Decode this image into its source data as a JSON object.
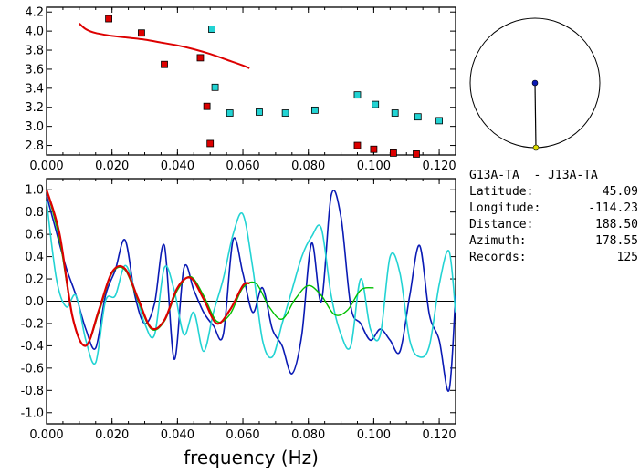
{
  "chart_data": [
    {
      "type": "scatter",
      "name": "dispersion",
      "xlim": [
        0.0,
        0.125
      ],
      "ylim": [
        2.7,
        4.25
      ],
      "xticks": [
        "0.000",
        "0.020",
        "0.040",
        "0.060",
        "0.080",
        "0.100",
        "0.120"
      ],
      "xtick_values": [
        0.0,
        0.02,
        0.04,
        0.06,
        0.08,
        0.1,
        0.12
      ],
      "yticks": [
        "2.8",
        "3.0",
        "3.2",
        "3.4",
        "3.6",
        "3.8",
        "4.0",
        "4.2"
      ],
      "ytick_values": [
        2.8,
        3.0,
        3.2,
        3.4,
        3.6,
        3.8,
        4.0,
        4.2
      ],
      "series": [
        {
          "kind": "points",
          "color": "#dd0000",
          "x": [
            0.019,
            0.029,
            0.036,
            0.047,
            0.049,
            0.05,
            0.095,
            0.1,
            0.106,
            0.113
          ],
          "y": [
            4.13,
            3.98,
            3.65,
            3.72,
            3.21,
            2.82,
            2.8,
            2.76,
            2.72,
            2.71
          ]
        },
        {
          "kind": "points",
          "color": "#22d3d3",
          "x": [
            0.0505,
            0.0515,
            0.056,
            0.065,
            0.073,
            0.082,
            0.095,
            0.1005,
            0.1065,
            0.1135,
            0.12
          ],
          "y": [
            4.02,
            3.41,
            3.14,
            3.15,
            3.14,
            3.17,
            3.33,
            3.23,
            3.14,
            3.1,
            3.06
          ]
        },
        {
          "kind": "line",
          "color": "#dd0000",
          "x": [
            0.01,
            0.012,
            0.015,
            0.02,
            0.025,
            0.03,
            0.035,
            0.04,
            0.045,
            0.05,
            0.055,
            0.06,
            0.062
          ],
          "y": [
            4.08,
            4.02,
            3.98,
            3.95,
            3.93,
            3.91,
            3.88,
            3.85,
            3.81,
            3.76,
            3.7,
            3.64,
            3.61
          ]
        }
      ]
    },
    {
      "type": "line",
      "name": "coherence",
      "xlabel": "frequency (Hz)",
      "xlim": [
        0.0,
        0.125
      ],
      "ylim": [
        -1.1,
        1.1
      ],
      "xticks": [
        "0.000",
        "0.020",
        "0.040",
        "0.060",
        "0.080",
        "0.100",
        "0.120"
      ],
      "xtick_values": [
        0.0,
        0.02,
        0.04,
        0.06,
        0.08,
        0.1,
        0.12
      ],
      "yticks": [
        "1.0",
        "0.8",
        "0.6",
        "0.4",
        "0.2",
        "0.0",
        "-0.2",
        "-0.4",
        "-0.6",
        "-0.8",
        "-1.0"
      ],
      "ytick_values": [
        1.0,
        0.8,
        0.6,
        0.4,
        0.2,
        0.0,
        -0.2,
        -0.4,
        -0.6,
        -0.8,
        -1.0
      ],
      "series": [
        {
          "color": "#0a1ab4",
          "x": [
            0.0,
            0.003,
            0.006,
            0.009,
            0.012,
            0.015,
            0.018,
            0.021,
            0.024,
            0.027,
            0.03,
            0.033,
            0.036,
            0.039,
            0.042,
            0.045,
            0.048,
            0.051,
            0.054,
            0.057,
            0.06,
            0.063,
            0.066,
            0.069,
            0.072,
            0.075,
            0.078,
            0.081,
            0.084,
            0.087,
            0.09,
            0.093,
            0.096,
            0.099,
            0.102,
            0.105,
            0.108,
            0.111,
            0.114,
            0.117,
            0.12,
            0.123,
            0.125
          ],
          "y": [
            0.95,
            0.62,
            0.3,
            0.05,
            -0.25,
            -0.42,
            0.05,
            0.28,
            0.55,
            0.05,
            -0.2,
            -0.02,
            0.5,
            -0.52,
            0.3,
            0.1,
            -0.1,
            -0.22,
            -0.3,
            0.55,
            0.25,
            -0.1,
            0.12,
            -0.25,
            -0.4,
            -0.65,
            -0.3,
            0.52,
            0.0,
            0.95,
            0.75,
            -0.05,
            -0.2,
            -0.35,
            -0.25,
            -0.35,
            -0.45,
            0.05,
            0.5,
            -0.12,
            -0.35,
            -0.8,
            0.05
          ]
        },
        {
          "color": "#22d3d3",
          "x": [
            0.0,
            0.003,
            0.006,
            0.009,
            0.012,
            0.015,
            0.018,
            0.021,
            0.024,
            0.027,
            0.03,
            0.033,
            0.036,
            0.039,
            0.042,
            0.045,
            0.048,
            0.051,
            0.054,
            0.057,
            0.06,
            0.063,
            0.066,
            0.069,
            0.072,
            0.075,
            0.078,
            0.081,
            0.084,
            0.087,
            0.09,
            0.093,
            0.096,
            0.099,
            0.102,
            0.105,
            0.108,
            0.111,
            0.114,
            0.117,
            0.12,
            0.123,
            0.125
          ],
          "y": [
            0.9,
            0.2,
            -0.05,
            0.05,
            -0.35,
            -0.55,
            0.0,
            0.05,
            0.32,
            0.1,
            -0.2,
            -0.3,
            0.3,
            0.1,
            -0.3,
            -0.1,
            -0.45,
            -0.1,
            0.2,
            0.6,
            0.78,
            0.3,
            -0.35,
            -0.5,
            -0.2,
            0.1,
            0.4,
            0.58,
            0.65,
            0.05,
            -0.3,
            -0.4,
            0.2,
            -0.25,
            -0.3,
            0.4,
            0.25,
            -0.35,
            -0.5,
            -0.4,
            0.15,
            0.45,
            -0.1
          ]
        },
        {
          "color": "#00c000",
          "x": [
            0.0,
            0.004,
            0.008,
            0.012,
            0.016,
            0.02,
            0.024,
            0.028,
            0.032,
            0.036,
            0.04,
            0.044,
            0.048,
            0.052,
            0.056,
            0.06,
            0.064,
            0.068,
            0.072,
            0.076,
            0.08,
            0.084,
            0.088,
            0.092,
            0.096,
            0.1
          ],
          "y": [
            1.0,
            0.55,
            -0.15,
            -0.4,
            -0.1,
            0.25,
            0.28,
            0.0,
            -0.25,
            -0.18,
            0.1,
            0.22,
            0.05,
            -0.18,
            -0.12,
            0.12,
            0.16,
            -0.05,
            -0.16,
            0.02,
            0.14,
            0.05,
            -0.12,
            -0.08,
            0.1,
            0.12
          ]
        },
        {
          "color": "#dd0000",
          "x": [
            0.0,
            0.004,
            0.008,
            0.012,
            0.016,
            0.02,
            0.024,
            0.028,
            0.032,
            0.036,
            0.04,
            0.044,
            0.048,
            0.052,
            0.056,
            0.06,
            0.062
          ],
          "y": [
            1.0,
            0.6,
            -0.15,
            -0.4,
            -0.08,
            0.26,
            0.29,
            0.02,
            -0.24,
            -0.17,
            0.12,
            0.21,
            0.02,
            -0.2,
            -0.08,
            0.14,
            0.16
          ]
        }
      ]
    }
  ],
  "info": {
    "title": "G13A-TA  - J13A-TA",
    "rows": [
      {
        "label": "Latitude:",
        "value": "45.09"
      },
      {
        "label": "Longitude:",
        "value": "-114.23"
      },
      {
        "label": "Distance:",
        "value": "188.50"
      },
      {
        "label": "Azimuth:",
        "value": "178.55"
      },
      {
        "label": "Records:",
        "value": "125"
      }
    ]
  },
  "map": {
    "circle_color": "#000000",
    "station_color": "#0a1ab4",
    "source_color": "#dddd00"
  }
}
